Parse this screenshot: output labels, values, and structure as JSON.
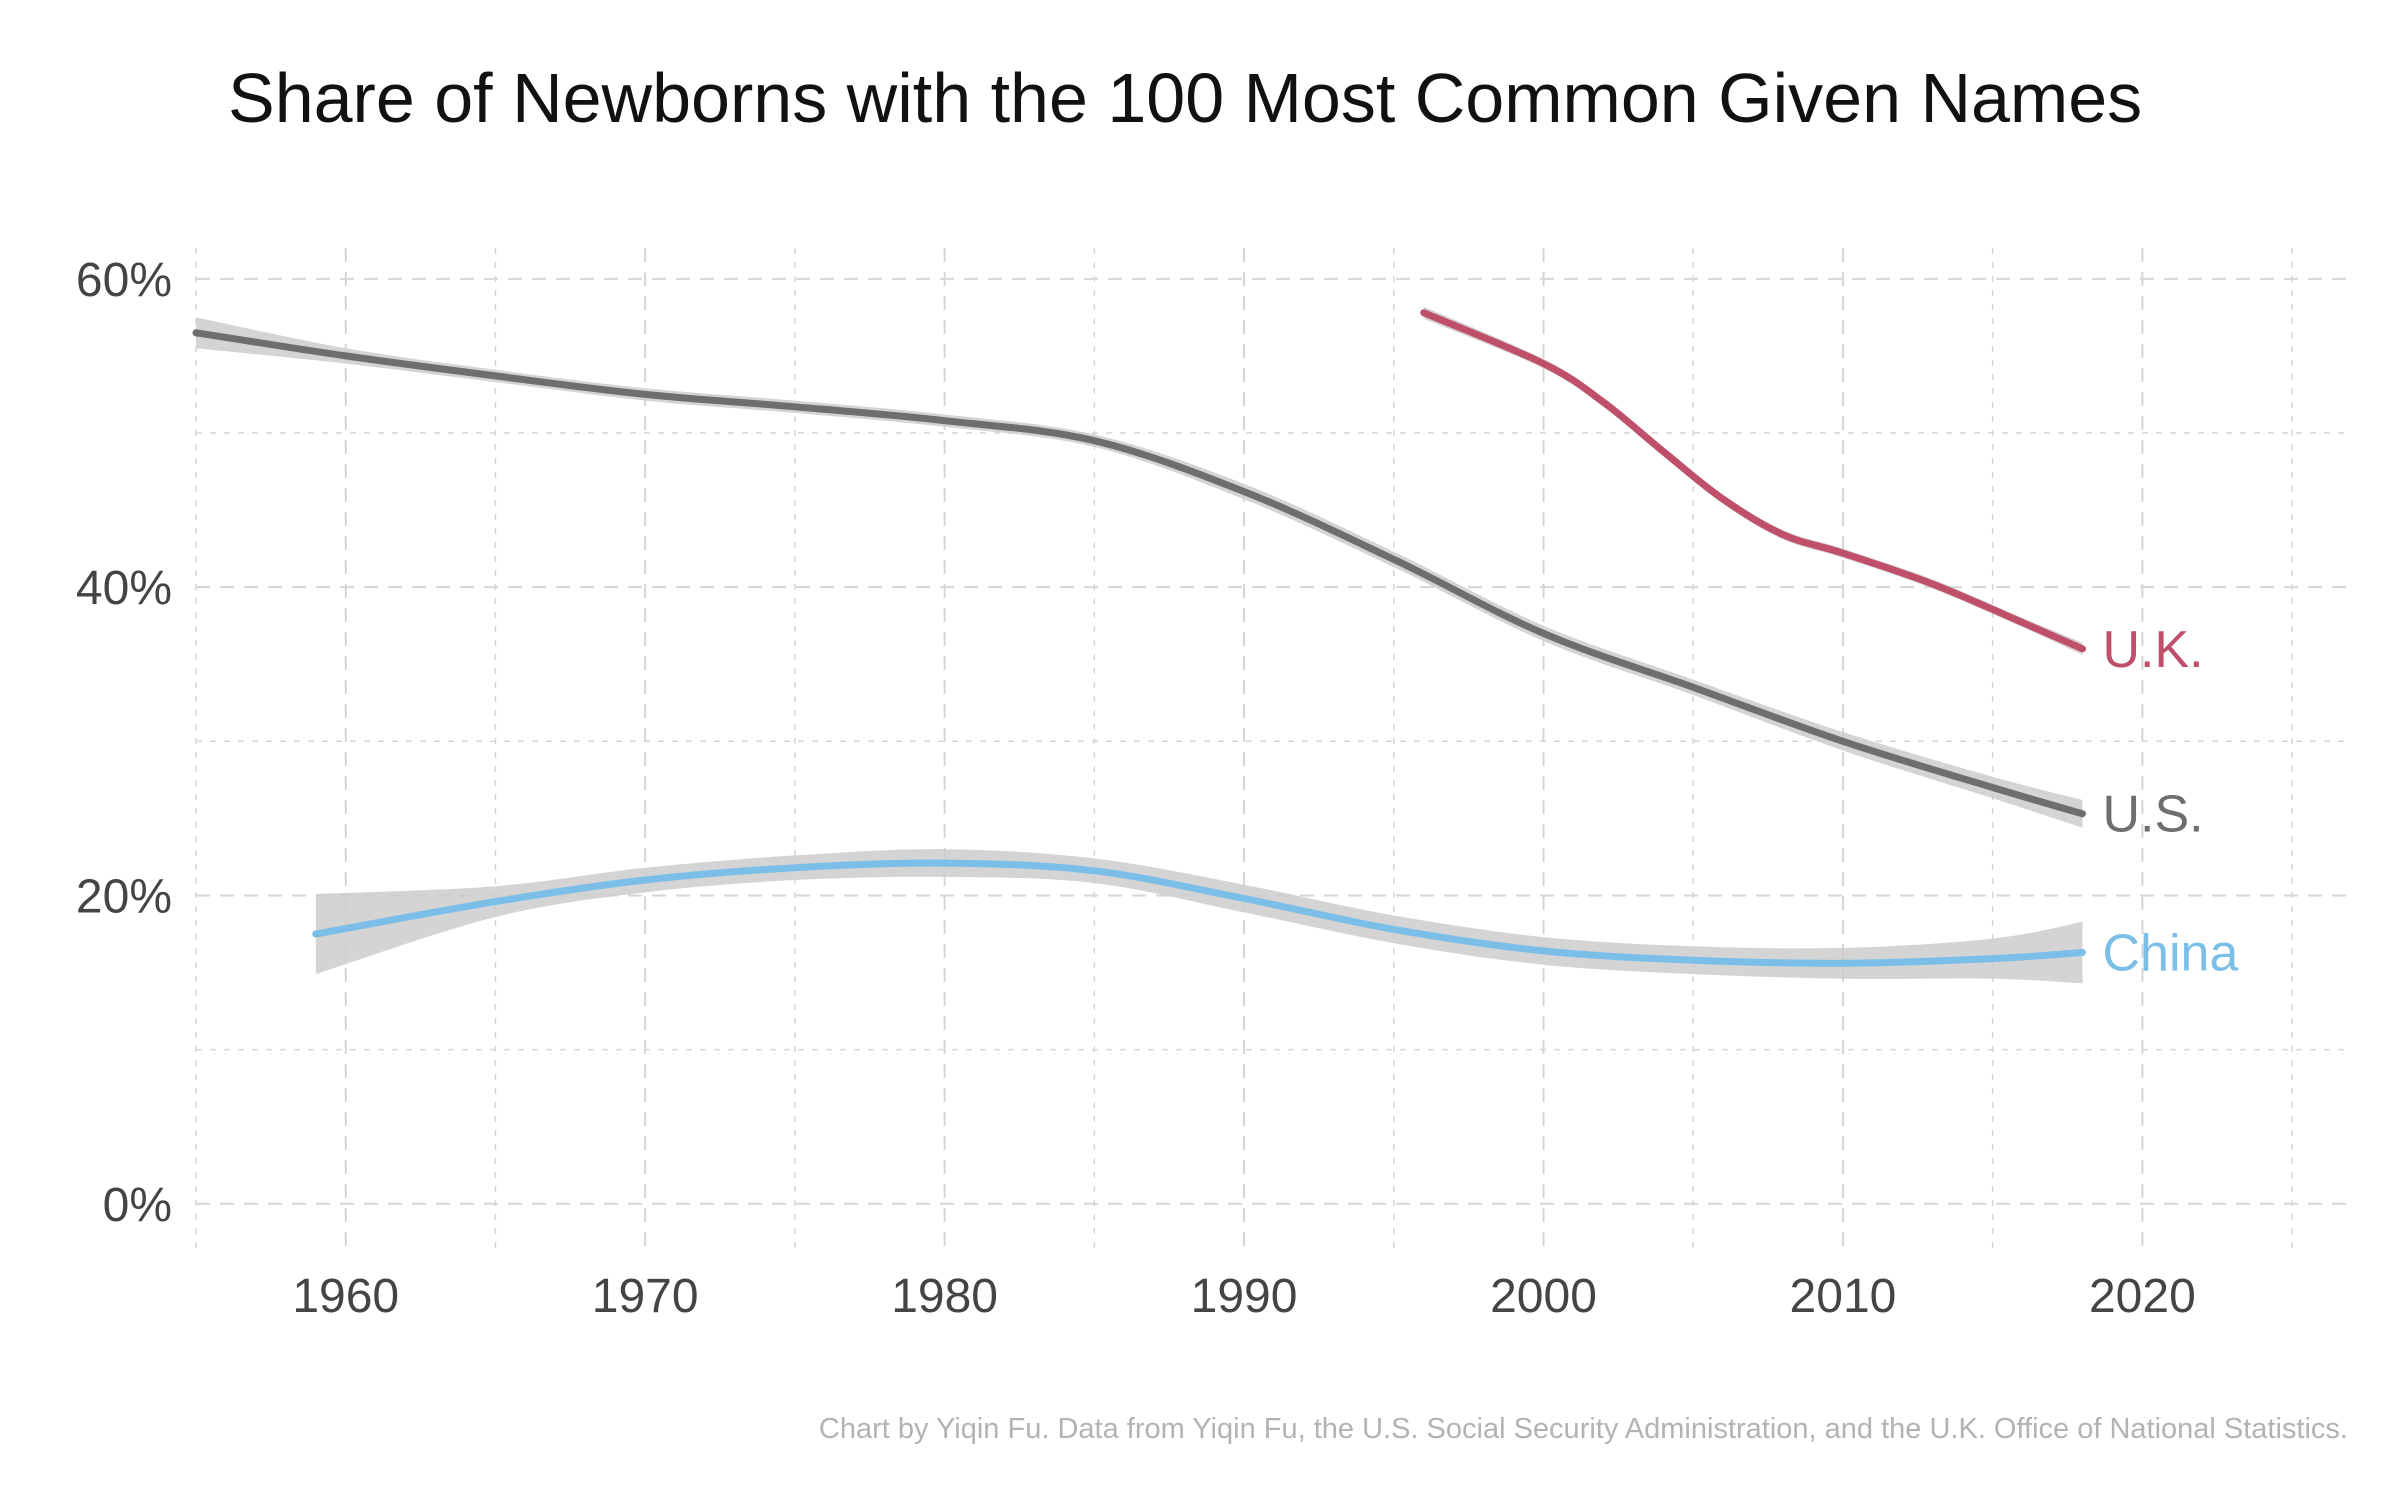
{
  "chart_data": {
    "type": "line",
    "title": "Share of Newborns with the 100 Most Common Given Names",
    "caption": "Chart by Yiqin Fu. Data from Yiqin Fu, the U.S. Social Security Administration, and the U.K. Office of National Statistics.",
    "xlabel": "",
    "ylabel": "",
    "xlim": [
      1955,
      2027
    ],
    "ylim": [
      -3,
      62
    ],
    "x_ticks": [
      1960,
      1970,
      1980,
      1990,
      2000,
      2010,
      2020
    ],
    "x_tick_labels": [
      "1960",
      "1970",
      "1980",
      "1990",
      "2000",
      "2010",
      "2020"
    ],
    "y_ticks": [
      0,
      20,
      40,
      60
    ],
    "y_tick_labels": [
      "0%",
      "20%",
      "40%",
      "60%"
    ],
    "grid": true,
    "legend": "direct labels at line ends",
    "series": [
      {
        "name": "U.S.",
        "color": "#6e6e6e",
        "x": [
          1955,
          1960,
          1965,
          1970,
          1975,
          1980,
          1985,
          1990,
          1995,
          2000,
          2005,
          2010,
          2015,
          2018
        ],
        "y": [
          56.5,
          55,
          53.7,
          52.5,
          51.7,
          50.8,
          49.5,
          46.2,
          41.8,
          37,
          33.5,
          30,
          27,
          25.3
        ],
        "band_half_width": [
          1.0,
          0.5,
          0.4,
          0.4,
          0.4,
          0.4,
          0.4,
          0.5,
          0.5,
          0.5,
          0.5,
          0.6,
          0.7,
          0.9
        ]
      },
      {
        "name": "U.K.",
        "color": "#c0506a",
        "x": [
          1996,
          2000,
          2002,
          2004,
          2006,
          2008,
          2010,
          2013,
          2016,
          2018
        ],
        "y": [
          57.8,
          54.5,
          52,
          48.8,
          45.7,
          43.4,
          42.2,
          40.2,
          37.7,
          36
        ],
        "band_half_width": [
          0.4,
          0.3,
          0.3,
          0.3,
          0.3,
          0.3,
          0.3,
          0.3,
          0.3,
          0.4
        ]
      },
      {
        "name": "China",
        "color": "#7bbfe8",
        "x": [
          1959,
          1965,
          1970,
          1975,
          1980,
          1985,
          1990,
          1995,
          2000,
          2005,
          2010,
          2015,
          2018
        ],
        "y": [
          17.5,
          19.6,
          21,
          21.8,
          22.1,
          21.6,
          19.8,
          17.8,
          16.4,
          15.8,
          15.6,
          15.9,
          16.3
        ],
        "band_half_width": [
          2.6,
          1.0,
          0.8,
          0.8,
          0.9,
          0.8,
          0.9,
          0.9,
          0.9,
          0.9,
          1.0,
          1.3,
          2.0
        ]
      }
    ]
  },
  "colors": {
    "band": "#cccccc",
    "grid": "#d6d6d6",
    "axis_text": "#444444",
    "title": "#111111",
    "caption": "#b3b3b3"
  }
}
